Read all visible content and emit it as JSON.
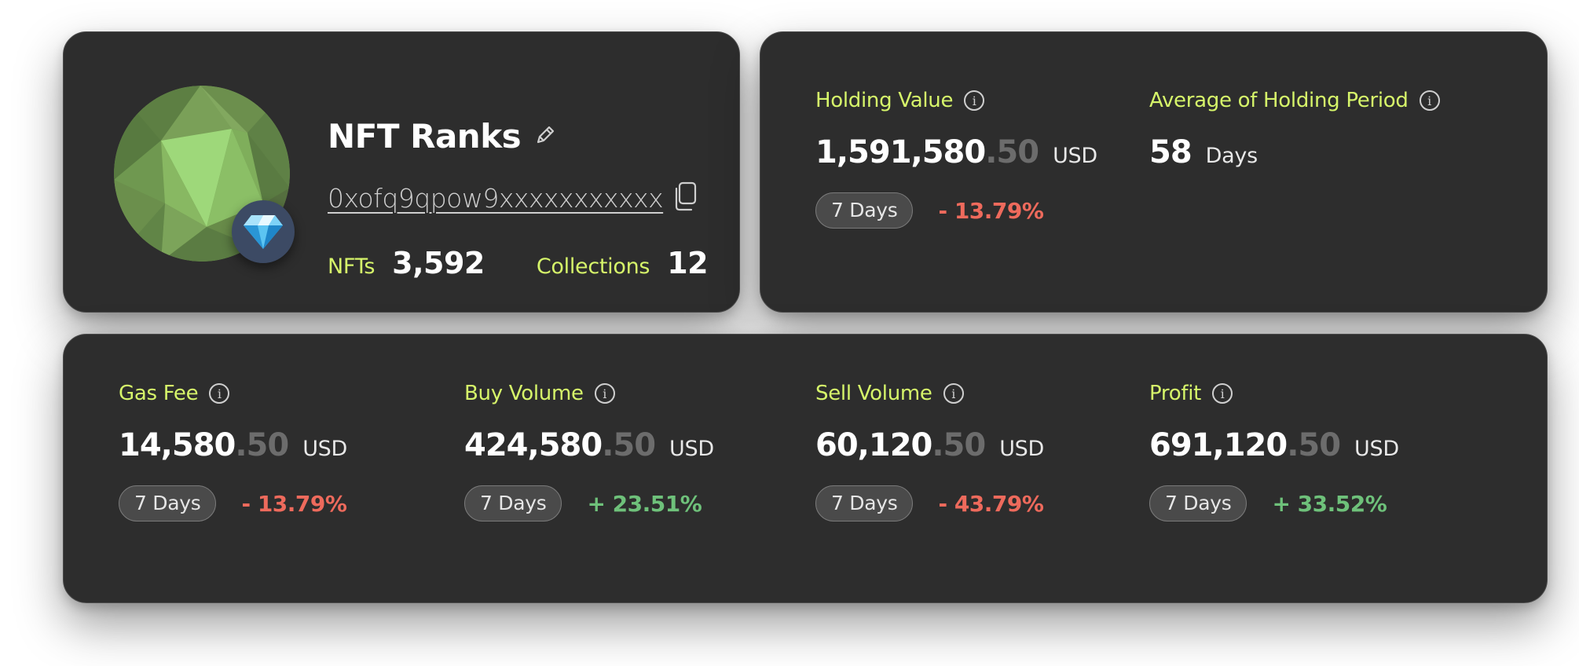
{
  "profile": {
    "title": "NFT Ranks",
    "address": "0xofq9qpow9xxxxxxxxxxx",
    "nfts_label": "NFTs",
    "nfts_value": "3,592",
    "collections_label": "Collections",
    "collections_value": "12",
    "icons": {
      "avatar": "low-poly-avatar",
      "badge": "diamond-icon",
      "edit": "pencil-icon",
      "copy": "copy-icon"
    }
  },
  "holding": {
    "holding_value": {
      "label": "Holding Value",
      "int": "1,591,580",
      "dec": ".50",
      "unit": "USD",
      "period": "7 Days",
      "change": "- 13.79%"
    },
    "avg_period": {
      "label": "Average of Holding Period",
      "int": "58",
      "unit": "Days"
    }
  },
  "stats": [
    {
      "label": "Gas Fee",
      "int": "14,580",
      "dec": ".50",
      "unit": "USD",
      "period": "7 Days",
      "change": "- 13.79%",
      "trend": "down"
    },
    {
      "label": "Buy Volume",
      "int": "424,580",
      "dec": ".50",
      "unit": "USD",
      "period": "7 Days",
      "change": "+ 23.51%",
      "trend": "up"
    },
    {
      "label": "Sell Volume",
      "int": "60,120",
      "dec": ".50",
      "unit": "USD",
      "period": "7 Days",
      "change": "- 43.79%",
      "trend": "down"
    },
    {
      "label": "Profit",
      "int": "691,120",
      "dec": ".50",
      "unit": "USD",
      "period": "7 Days",
      "change": "+ 33.52%",
      "trend": "up"
    }
  ],
  "colors": {
    "card_bg": "#2d2d2d",
    "accent_label": "#d6f56a",
    "negative": "#ee6a5c",
    "positive": "#6ec17a",
    "muted_decimal": "#6c6c6c"
  }
}
